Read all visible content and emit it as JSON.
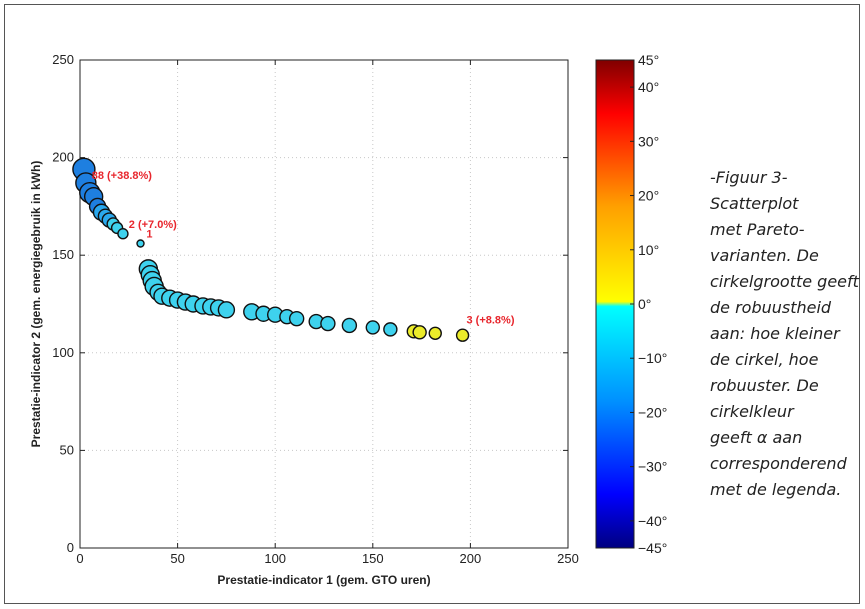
{
  "chart_data": {
    "type": "scatter",
    "xlabel": "Prestatie-indicator 1 (gem. GTO uren)",
    "ylabel": "Prestatie-indicator 2 (gem. energiegebruik in kWh)",
    "xlim": [
      0,
      250
    ],
    "ylim": [
      0,
      250
    ],
    "x_ticks": [
      "0",
      "50",
      "100",
      "150",
      "200",
      "250"
    ],
    "y_ticks": [
      "0",
      "50",
      "100",
      "150",
      "200",
      "250"
    ],
    "grid": true,
    "points": [
      {
        "x": 2,
        "y": 194,
        "size": 11,
        "alpha": -20
      },
      {
        "x": 3,
        "y": 187,
        "size": 10,
        "alpha": -20
      },
      {
        "x": 5,
        "y": 182,
        "size": 10,
        "alpha": -20
      },
      {
        "x": 7,
        "y": 180,
        "size": 9,
        "alpha": -18
      },
      {
        "x": 9,
        "y": 175,
        "size": 8,
        "alpha": -15
      },
      {
        "x": 11,
        "y": 172,
        "size": 8,
        "alpha": -12
      },
      {
        "x": 13,
        "y": 170,
        "size": 7,
        "alpha": -10
      },
      {
        "x": 15,
        "y": 168,
        "size": 7,
        "alpha": -8
      },
      {
        "x": 17,
        "y": 166,
        "size": 6,
        "alpha": -6
      },
      {
        "x": 19,
        "y": 164,
        "size": 5.5,
        "alpha": -5
      },
      {
        "x": 22,
        "y": 161,
        "size": 5,
        "alpha": -4
      },
      {
        "x": 31,
        "y": 156,
        "size": 3.5,
        "alpha": -3
      },
      {
        "x": 35,
        "y": 143,
        "size": 9,
        "alpha": -5
      },
      {
        "x": 36,
        "y": 140,
        "size": 9,
        "alpha": -5
      },
      {
        "x": 37,
        "y": 137,
        "size": 9,
        "alpha": -5
      },
      {
        "x": 38,
        "y": 134,
        "size": 9,
        "alpha": -5
      },
      {
        "x": 40,
        "y": 131,
        "size": 8,
        "alpha": -5
      },
      {
        "x": 42,
        "y": 129,
        "size": 8,
        "alpha": -5
      },
      {
        "x": 46,
        "y": 128,
        "size": 8,
        "alpha": -5
      },
      {
        "x": 50,
        "y": 127,
        "size": 8,
        "alpha": -5
      },
      {
        "x": 54,
        "y": 126,
        "size": 8,
        "alpha": -5
      },
      {
        "x": 58,
        "y": 125,
        "size": 8,
        "alpha": -5
      },
      {
        "x": 63,
        "y": 124,
        "size": 8,
        "alpha": -5
      },
      {
        "x": 67,
        "y": 123.5,
        "size": 8,
        "alpha": -5
      },
      {
        "x": 71,
        "y": 123,
        "size": 8,
        "alpha": -5
      },
      {
        "x": 75,
        "y": 122,
        "size": 8,
        "alpha": -5
      },
      {
        "x": 88,
        "y": 121,
        "size": 8,
        "alpha": -5
      },
      {
        "x": 94,
        "y": 120,
        "size": 7.5,
        "alpha": -5
      },
      {
        "x": 100,
        "y": 119.5,
        "size": 7.5,
        "alpha": -5
      },
      {
        "x": 106,
        "y": 118.5,
        "size": 7,
        "alpha": -5
      },
      {
        "x": 111,
        "y": 117.5,
        "size": 7,
        "alpha": -5
      },
      {
        "x": 121,
        "y": 116,
        "size": 7,
        "alpha": -5
      },
      {
        "x": 127,
        "y": 115,
        "size": 7,
        "alpha": -5
      },
      {
        "x": 138,
        "y": 114,
        "size": 7,
        "alpha": -5
      },
      {
        "x": 150,
        "y": 113,
        "size": 6.5,
        "alpha": -5
      },
      {
        "x": 159,
        "y": 112,
        "size": 6.5,
        "alpha": -5
      },
      {
        "x": 171,
        "y": 111,
        "size": 6.5,
        "alpha": 3
      },
      {
        "x": 174,
        "y": 110.5,
        "size": 6.5,
        "alpha": 3
      },
      {
        "x": 182,
        "y": 110,
        "size": 6,
        "alpha": 3
      },
      {
        "x": 196,
        "y": 109,
        "size": 6,
        "alpha": 3
      }
    ],
    "annotations": [
      {
        "text": "88 (+38.8%)",
        "x": 6,
        "y": 189,
        "color": "#e8262d"
      },
      {
        "text": "2 (+7.0%)",
        "x": 25,
        "y": 164,
        "color": "#e8262d"
      },
      {
        "text": "1",
        "x": 34,
        "y": 159,
        "color": "#e8262d"
      },
      {
        "text": "3 (+8.8%)",
        "x": 198,
        "y": 115,
        "color": "#e8262d"
      }
    ],
    "colorbar": {
      "range": [
        -45,
        45
      ],
      "tick_values": [
        45,
        40,
        30,
        20,
        10,
        0,
        -10,
        -20,
        -30,
        -40,
        -45
      ],
      "tick_labels": [
        "45°",
        "40°",
        "30°",
        "20°",
        "10°",
        "0°",
        "−10°",
        "−20°",
        "−30°",
        "−40°",
        "−45°"
      ]
    }
  },
  "caption": {
    "lines": [
      "-Figuur 3-",
      "Scatterplot",
      "met Pareto-",
      "varianten. De",
      "cirkelgrootte geeft",
      "de robuustheid",
      "aan: hoe kleiner",
      "de cirkel, hoe",
      "robuuster. De",
      "cirkelkleur",
      "geeft α aan",
      "corresponderend",
      "met de legenda."
    ]
  }
}
